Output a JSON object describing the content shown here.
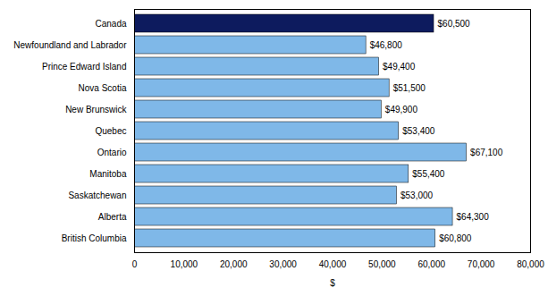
{
  "chart_data": {
    "type": "bar",
    "orientation": "horizontal",
    "categories": [
      "Canada",
      "Newfoundland and Labrador",
      "Prince Edward Island",
      "Nova Scotia",
      "New Brunswick",
      "Quebec",
      "Ontario",
      "Manitoba",
      "Saskatchewan",
      "Alberta",
      "British Columbia"
    ],
    "values": [
      60500,
      46800,
      49400,
      51500,
      49900,
      53400,
      67100,
      55400,
      53000,
      64300,
      60800
    ],
    "value_labels": [
      "$60,500",
      "$46,800",
      "$49,400",
      "$51,500",
      "$49,900",
      "$53,400",
      "$67,100",
      "$55,400",
      "$53,000",
      "$64,300",
      "$60,800"
    ],
    "colors": [
      "#0d1b5e",
      "#7fb8e8",
      "#7fb8e8",
      "#7fb8e8",
      "#7fb8e8",
      "#7fb8e8",
      "#7fb8e8",
      "#7fb8e8",
      "#7fb8e8",
      "#7fb8e8",
      "#7fb8e8"
    ],
    "xlabel": "$",
    "xlim": [
      0,
      80000
    ],
    "xticks": [
      0,
      {
        "value": 10000,
        "label": "10,000"
      },
      {
        "value": 20000,
        "label": "20,000"
      },
      {
        "value": 30000,
        "label": "30,000"
      },
      {
        "value": 40000,
        "label": "40,000"
      },
      {
        "value": 50000,
        "label": "50,000"
      },
      {
        "value": 60000,
        "label": "60,000"
      },
      {
        "value": 70000,
        "label": "70,000"
      },
      {
        "value": 80000,
        "label": "80,000"
      }
    ],
    "grid": false,
    "data_labels": true
  }
}
